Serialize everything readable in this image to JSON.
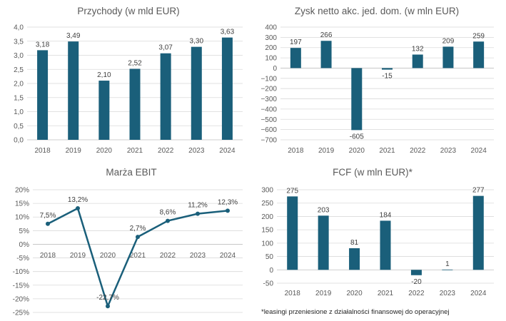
{
  "colors": {
    "bar": "#1a5f7a",
    "line": "#1a5f7a",
    "grid": "#d9d9d9",
    "axis": "#bfbfbf",
    "text": "#595959"
  },
  "footnote": "*leasingi przeniesione z działalności finansowej do operacyjnej",
  "chart_data": [
    {
      "type": "bar",
      "title": "Przychody (w mld EUR)",
      "categories": [
        "2018",
        "2019",
        "2020",
        "2021",
        "2022",
        "2023",
        "2024"
      ],
      "values": [
        3.18,
        3.49,
        2.1,
        2.52,
        3.07,
        3.3,
        3.63
      ],
      "value_labels": [
        "3,18",
        "3,49",
        "2,10",
        "2,52",
        "3,07",
        "3,30",
        "3,63"
      ],
      "ylim": [
        0,
        4
      ],
      "yticks": [
        0,
        0.5,
        1.0,
        1.5,
        2.0,
        2.5,
        3.0,
        3.5,
        4.0
      ],
      "ytick_labels": [
        "0,0",
        "0,5",
        "1,0",
        "1,5",
        "2,0",
        "2,5",
        "3,0",
        "3,5",
        "4,0"
      ],
      "grid": true,
      "legend": "none"
    },
    {
      "type": "bar",
      "title": "Zysk netto akc. jed. dom. (w mln EUR)",
      "categories": [
        "2018",
        "2019",
        "2020",
        "2021",
        "2022",
        "2023",
        "2024"
      ],
      "values": [
        197,
        266,
        -605,
        -15,
        132,
        209,
        259
      ],
      "value_labels": [
        "197",
        "266",
        "-605",
        "-15",
        "132",
        "209",
        "259"
      ],
      "ylim": [
        -700,
        400
      ],
      "yticks": [
        400,
        300,
        200,
        100,
        0,
        -100,
        -200,
        -300,
        -400,
        -500,
        -600,
        -700
      ],
      "ytick_labels": [
        "400",
        "300",
        "200",
        "100",
        "0",
        "−100",
        "−200",
        "−300",
        "−400",
        "−500",
        "−600",
        "−700"
      ],
      "grid": true,
      "legend": "none"
    },
    {
      "type": "line",
      "title": "Marża EBIT",
      "categories": [
        "2018",
        "2019",
        "2020",
        "2021",
        "2022",
        "2023",
        "2024"
      ],
      "values": [
        7.5,
        13.2,
        -22.7,
        2.7,
        8.6,
        11.2,
        12.3
      ],
      "value_labels": [
        "7,5%",
        "13,2%",
        "-22,7%",
        "2,7%",
        "8,6%",
        "11,2%",
        "12,3%"
      ],
      "ylim": [
        -25,
        20
      ],
      "yticks": [
        20,
        15,
        10,
        5,
        0,
        -5,
        -10,
        -15,
        -20,
        -25
      ],
      "ytick_labels": [
        "20%",
        "15%",
        "10%",
        "5%",
        "0%",
        "-5%",
        "-10%",
        "-15%",
        "-20%",
        "-25%"
      ],
      "grid": true,
      "legend": "none"
    },
    {
      "type": "bar",
      "title": "FCF (w mln EUR)*",
      "categories": [
        "2018",
        "2019",
        "2020",
        "2021",
        "2022",
        "2023",
        "2024"
      ],
      "values": [
        275,
        203,
        81,
        184,
        -20,
        1,
        277
      ],
      "value_labels": [
        "275",
        "203",
        "81",
        "184",
        "-20",
        "1",
        "277"
      ],
      "ylim": [
        -50,
        300
      ],
      "yticks": [
        300,
        250,
        200,
        150,
        100,
        50,
        0,
        -50
      ],
      "ytick_labels": [
        "300",
        "250",
        "200",
        "150",
        "100",
        "50",
        "0",
        "-50"
      ],
      "grid": true,
      "legend": "none"
    }
  ]
}
